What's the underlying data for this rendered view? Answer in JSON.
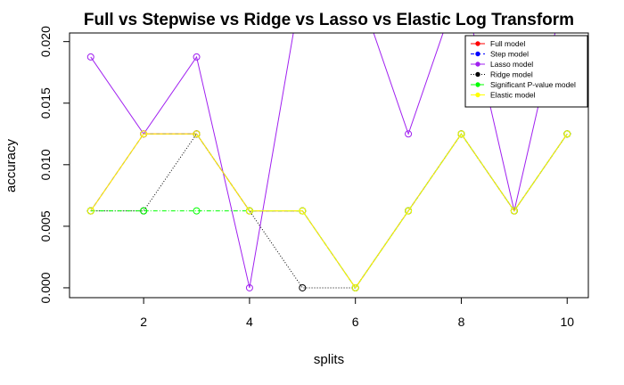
{
  "chart_data": {
    "type": "line",
    "title": "Full vs Stepwise  vs Ridge vs Lasso vs Elastic Log Transform",
    "xlabel": "splits",
    "ylabel": "accuracy",
    "xlim": [
      0.6,
      10.4
    ],
    "ylim": [
      -0.0008,
      0.0207
    ],
    "x_ticks": [
      2,
      4,
      6,
      8,
      10
    ],
    "x_tick_labels": [
      "2",
      "4",
      "6",
      "8",
      "10"
    ],
    "y_ticks": [
      0.0,
      0.005,
      0.01,
      0.015,
      0.02
    ],
    "y_tick_labels": [
      "0.000",
      "0.005",
      "0.010",
      "0.015",
      "0.020"
    ],
    "grid": false,
    "legend_position": "top-right",
    "x": [
      1,
      2,
      3,
      4,
      5,
      6,
      7,
      8,
      9,
      10
    ],
    "series": [
      {
        "name": "Full model",
        "color": "#ff0000",
        "dash": "solid",
        "values": [
          0.00625,
          0.0125,
          0.0125,
          0.00625,
          0.00625,
          0.0,
          0.00625,
          0.0125,
          0.00625,
          0.0125
        ]
      },
      {
        "name": "Step model",
        "color": "#0000ff",
        "dash": "dashed",
        "values": [
          0.00625,
          0.0125,
          0.0125,
          0.00625,
          0.00625,
          0.0,
          0.00625,
          0.0125,
          0.00625,
          0.0125
        ]
      },
      {
        "name": "Lasso model",
        "color": "#a020f0",
        "dash": "solid",
        "values": [
          0.01875,
          0.0125,
          0.01875,
          0.0,
          0.025,
          0.025,
          0.0125,
          0.025,
          0.00625,
          0.025
        ]
      },
      {
        "name": "Ridge model",
        "color": "#000000",
        "dash": "dotted",
        "values": [
          0.00625,
          0.00625,
          0.0125,
          0.00625,
          0.0,
          0.0,
          0.00625,
          0.0125,
          0.00625,
          0.0125
        ]
      },
      {
        "name": "Significant P-value model",
        "color": "#00ff00",
        "dash": "dashdot",
        "values": [
          0.00625,
          0.00625,
          0.00625,
          0.00625,
          0.00625,
          0.0,
          0.00625,
          0.0125,
          0.00625,
          0.0125
        ]
      },
      {
        "name": "Elastic model",
        "color": "#ffff00",
        "dash": "solid",
        "values": [
          0.00625,
          0.0125,
          0.0125,
          0.00625,
          0.00625,
          0.0,
          0.00625,
          0.0125,
          0.00625,
          0.0125
        ]
      }
    ]
  }
}
